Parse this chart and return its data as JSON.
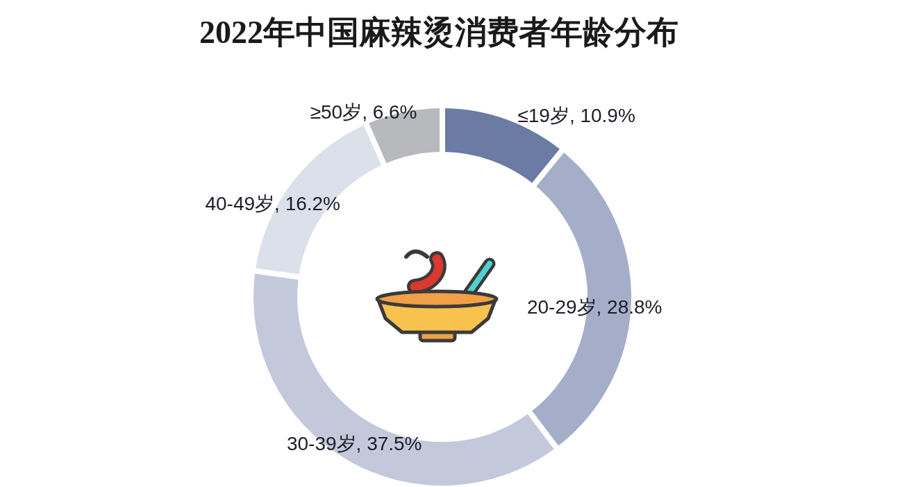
{
  "chart_data": {
    "type": "donut",
    "title": "2022年中国麻辣烫消费者年龄分布",
    "categories": [
      "≤19岁",
      "20-29岁",
      "30-39岁",
      "40-49岁",
      "≥50岁"
    ],
    "values": [
      10.9,
      28.8,
      37.5,
      16.2,
      6.6
    ],
    "colors": [
      "#6b7ba3",
      "#a4aec8",
      "#c3c9da",
      "#dce0eb",
      "#b8b9bc"
    ],
    "value_labels": [
      "10.9%",
      "28.8%",
      "37.5%",
      "16.2%",
      "6.6%"
    ]
  }
}
